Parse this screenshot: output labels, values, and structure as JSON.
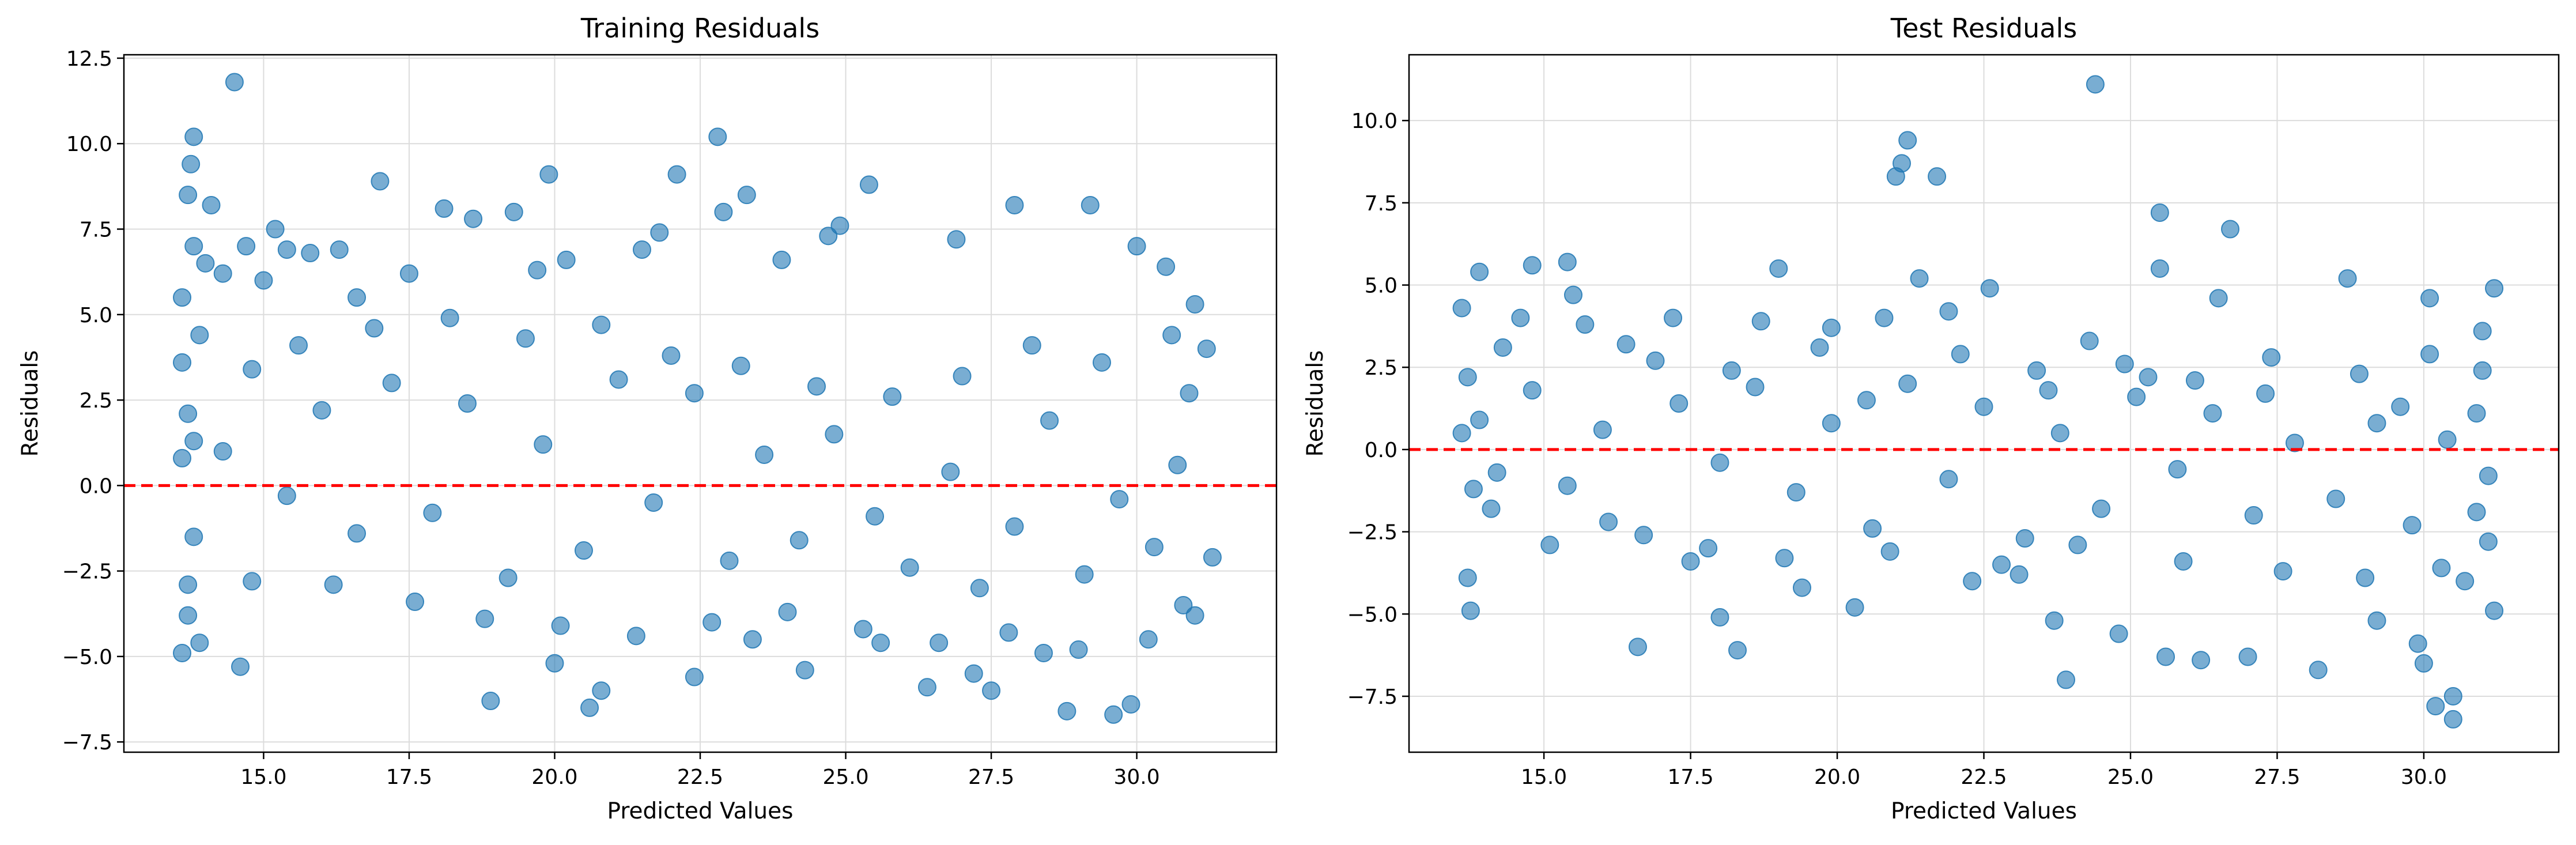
{
  "chart_data": [
    {
      "type": "scatter",
      "title": "Training Residuals",
      "xlabel": "Predicted Values",
      "ylabel": "Residuals",
      "xlim": [
        12.6,
        32.4
      ],
      "ylim": [
        -7.8,
        12.6
      ],
      "xticks": [
        "15.0",
        "17.5",
        "20.0",
        "22.5",
        "25.0",
        "27.5",
        "30.0"
      ],
      "yticks": [
        "12.5",
        "10.0",
        "7.5",
        "5.0",
        "2.5",
        "0.0",
        "−2.5",
        "−5.0",
        "−7.5"
      ],
      "reference_line": {
        "y": 0,
        "style": "dashed",
        "color": "#ff0000"
      },
      "grid": true,
      "point_color": "#1f77b4",
      "point_alpha": 0.6,
      "series": [
        {
          "values": [
            [
              13.7,
              2.1
            ],
            [
              13.6,
              0.8
            ],
            [
              13.8,
              -1.5
            ],
            [
              13.6,
              3.6
            ],
            [
              13.9,
              4.4
            ],
            [
              13.7,
              -2.9
            ],
            [
              13.6,
              5.5
            ],
            [
              13.8,
              1.3
            ],
            [
              13.7,
              -3.8
            ],
            [
              13.6,
              -4.9
            ],
            [
              13.8,
              7.0
            ],
            [
              13.7,
              8.5
            ],
            [
              13.75,
              9.4
            ],
            [
              13.8,
              10.2
            ],
            [
              13.9,
              -4.6
            ],
            [
              14.0,
              6.5
            ],
            [
              14.1,
              8.2
            ],
            [
              14.3,
              6.2
            ],
            [
              14.5,
              11.8
            ],
            [
              14.6,
              -5.3
            ],
            [
              14.7,
              7.0
            ],
            [
              14.8,
              -2.8
            ],
            [
              15.0,
              6.0
            ],
            [
              15.2,
              7.5
            ],
            [
              15.4,
              6.9
            ],
            [
              15.8,
              6.8
            ],
            [
              16.3,
              6.9
            ],
            [
              16.6,
              5.5
            ],
            [
              17.0,
              8.9
            ],
            [
              17.5,
              6.2
            ],
            [
              18.1,
              8.1
            ],
            [
              18.6,
              7.8
            ],
            [
              18.9,
              -6.3
            ],
            [
              19.3,
              8.0
            ],
            [
              19.7,
              6.3
            ],
            [
              19.9,
              9.1
            ],
            [
              20.0,
              -5.2
            ],
            [
              20.2,
              6.6
            ],
            [
              20.6,
              -6.5
            ],
            [
              20.8,
              -6.0
            ],
            [
              21.5,
              6.9
            ],
            [
              21.8,
              7.4
            ],
            [
              22.1,
              9.1
            ],
            [
              22.4,
              -5.6
            ],
            [
              22.8,
              10.2
            ],
            [
              22.9,
              8.0
            ],
            [
              23.3,
              8.5
            ],
            [
              23.4,
              -4.5
            ],
            [
              23.9,
              6.6
            ],
            [
              24.3,
              -5.4
            ],
            [
              24.7,
              7.3
            ],
            [
              24.9,
              7.6
            ],
            [
              25.4,
              8.8
            ],
            [
              25.6,
              -4.6
            ],
            [
              26.4,
              -5.9
            ],
            [
              26.9,
              7.2
            ],
            [
              27.2,
              -5.5
            ],
            [
              27.5,
              -6.0
            ],
            [
              27.9,
              8.2
            ],
            [
              28.4,
              -4.9
            ],
            [
              28.8,
              -6.6
            ],
            [
              29.2,
              8.2
            ],
            [
              29.6,
              -6.7
            ],
            [
              29.9,
              -6.4
            ],
            [
              30.0,
              7.0
            ],
            [
              30.5,
              6.4
            ],
            [
              30.8,
              -3.5
            ],
            [
              31.0,
              5.3
            ],
            [
              31.2,
              4.0
            ],
            [
              31.3,
              -2.1
            ],
            [
              31.0,
              -3.8
            ],
            [
              30.9,
              2.7
            ],
            [
              30.7,
              0.6
            ],
            [
              30.3,
              -1.8
            ],
            [
              29.7,
              -0.4
            ],
            [
              29.1,
              -2.6
            ],
            [
              28.5,
              1.9
            ],
            [
              27.9,
              -1.2
            ],
            [
              27.3,
              -3.0
            ],
            [
              26.8,
              0.4
            ],
            [
              26.1,
              -2.4
            ],
            [
              25.5,
              -0.9
            ],
            [
              24.8,
              1.5
            ],
            [
              24.2,
              -1.6
            ],
            [
              23.6,
              0.9
            ],
            [
              23.0,
              -2.2
            ],
            [
              22.4,
              2.7
            ],
            [
              21.7,
              -0.5
            ],
            [
              21.1,
              3.1
            ],
            [
              20.5,
              -1.9
            ],
            [
              19.8,
              1.2
            ],
            [
              19.2,
              -2.7
            ],
            [
              18.5,
              2.4
            ],
            [
              17.9,
              -0.8
            ],
            [
              17.2,
              3.0
            ],
            [
              16.6,
              -1.4
            ],
            [
              16.0,
              2.2
            ],
            [
              15.4,
              -0.3
            ],
            [
              14.8,
              3.4
            ],
            [
              14.3,
              1.0
            ],
            [
              15.6,
              4.1
            ],
            [
              16.9,
              4.6
            ],
            [
              18.2,
              4.9
            ],
            [
              19.5,
              4.3
            ],
            [
              20.8,
              4.7
            ],
            [
              22.0,
              3.8
            ],
            [
              23.2,
              3.5
            ],
            [
              24.5,
              2.9
            ],
            [
              25.8,
              2.6
            ],
            [
              27.0,
              3.2
            ],
            [
              28.2,
              4.1
            ],
            [
              29.4,
              3.6
            ],
            [
              30.6,
              4.4
            ],
            [
              16.2,
              -2.9
            ],
            [
              17.6,
              -3.4
            ],
            [
              18.8,
              -3.9
            ],
            [
              20.1,
              -4.1
            ],
            [
              21.4,
              -4.4
            ],
            [
              22.7,
              -4.0
            ],
            [
              24.0,
              -3.7
            ],
            [
              25.3,
              -4.2
            ],
            [
              26.6,
              -4.6
            ],
            [
              27.8,
              -4.3
            ],
            [
              29.0,
              -4.8
            ],
            [
              30.2,
              -4.5
            ]
          ]
        }
      ]
    },
    {
      "type": "scatter",
      "title": "Test Residuals",
      "xlabel": "Predicted Values",
      "ylabel": "Residuals",
      "xlim": [
        12.7,
        32.3
      ],
      "ylim": [
        -9.2,
        12.0
      ],
      "xticks": [
        "15.0",
        "17.5",
        "20.0",
        "22.5",
        "25.0",
        "27.5",
        "30.0"
      ],
      "yticks": [
        "10.0",
        "7.5",
        "5.0",
        "2.5",
        "0.0",
        "−2.5",
        "−5.0",
        "−7.5"
      ],
      "reference_line": {
        "y": 0,
        "style": "dashed",
        "color": "#ff0000"
      },
      "grid": true,
      "point_color": "#1f77b4",
      "point_alpha": 0.6,
      "series": [
        {
          "values": [
            [
              13.6,
              4.3
            ],
            [
              13.7,
              2.2
            ],
            [
              13.6,
              0.5
            ],
            [
              13.8,
              -1.2
            ],
            [
              13.7,
              -3.9
            ],
            [
              13.75,
              -4.9
            ],
            [
              13.9,
              5.4
            ],
            [
              14.1,
              -1.8
            ],
            [
              14.3,
              3.1
            ],
            [
              14.6,
              4.0
            ],
            [
              14.8,
              5.6
            ],
            [
              15.1,
              -2.9
            ],
            [
              15.4,
              5.7
            ],
            [
              15.5,
              4.7
            ],
            [
              15.7,
              3.8
            ],
            [
              16.1,
              -2.2
            ],
            [
              16.4,
              3.2
            ],
            [
              16.6,
              -6.0
            ],
            [
              17.2,
              4.0
            ],
            [
              17.5,
              -3.4
            ],
            [
              18.0,
              -5.1
            ],
            [
              18.3,
              -6.1
            ],
            [
              18.7,
              3.9
            ],
            [
              19.0,
              5.5
            ],
            [
              19.4,
              -4.2
            ],
            [
              19.9,
              3.7
            ],
            [
              20.3,
              -4.8
            ],
            [
              20.8,
              4.0
            ],
            [
              21.0,
              8.3
            ],
            [
              21.1,
              8.7
            ],
            [
              21.2,
              9.4
            ],
            [
              21.4,
              5.2
            ],
            [
              21.7,
              8.3
            ],
            [
              21.9,
              4.2
            ],
            [
              22.3,
              -4.0
            ],
            [
              22.6,
              4.9
            ],
            [
              23.1,
              -3.8
            ],
            [
              23.4,
              2.4
            ],
            [
              23.7,
              -5.2
            ],
            [
              23.9,
              -7.0
            ],
            [
              24.3,
              3.3
            ],
            [
              24.4,
              11.1
            ],
            [
              24.8,
              -5.6
            ],
            [
              25.3,
              2.2
            ],
            [
              25.5,
              7.2
            ],
            [
              25.5,
              5.5
            ],
            [
              25.6,
              -6.3
            ],
            [
              26.2,
              -6.4
            ],
            [
              26.5,
              4.6
            ],
            [
              26.7,
              6.7
            ],
            [
              27.0,
              -6.3
            ],
            [
              27.4,
              2.8
            ],
            [
              28.2,
              -6.7
            ],
            [
              28.7,
              5.2
            ],
            [
              29.2,
              -5.2
            ],
            [
              29.6,
              1.3
            ],
            [
              29.9,
              -5.9
            ],
            [
              30.0,
              -6.5
            ],
            [
              30.1,
              4.6
            ],
            [
              30.2,
              -7.8
            ],
            [
              30.5,
              -8.2
            ],
            [
              30.5,
              -7.5
            ],
            [
              30.7,
              -4.0
            ],
            [
              30.9,
              1.1
            ],
            [
              31.0,
              3.6
            ],
            [
              31.1,
              -2.8
            ],
            [
              31.2,
              4.9
            ],
            [
              31.1,
              -0.8
            ],
            [
              31.0,
              2.4
            ],
            [
              31.2,
              -4.9
            ],
            [
              30.9,
              -1.9
            ],
            [
              30.4,
              0.3
            ],
            [
              29.8,
              -2.3
            ],
            [
              29.2,
              0.8
            ],
            [
              28.5,
              -1.5
            ],
            [
              27.8,
              0.2
            ],
            [
              27.1,
              -2.0
            ],
            [
              26.4,
              1.1
            ],
            [
              25.8,
              -0.6
            ],
            [
              25.1,
              1.6
            ],
            [
              24.5,
              -1.8
            ],
            [
              23.8,
              0.5
            ],
            [
              23.2,
              -2.7
            ],
            [
              22.5,
              1.3
            ],
            [
              21.9,
              -0.9
            ],
            [
              21.2,
              2.0
            ],
            [
              20.6,
              -2.4
            ],
            [
              19.9,
              0.8
            ],
            [
              19.3,
              -1.3
            ],
            [
              18.6,
              1.9
            ],
            [
              18.0,
              -0.4
            ],
            [
              17.3,
              1.4
            ],
            [
              16.7,
              -2.6
            ],
            [
              16.0,
              0.6
            ],
            [
              15.4,
              -1.1
            ],
            [
              14.8,
              1.8
            ],
            [
              14.2,
              -0.7
            ],
            [
              13.9,
              0.9
            ],
            [
              16.9,
              2.7
            ],
            [
              18.2,
              2.4
            ],
            [
              19.7,
              3.1
            ],
            [
              20.5,
              1.5
            ],
            [
              22.1,
              2.9
            ],
            [
              23.6,
              1.8
            ],
            [
              24.9,
              2.6
            ],
            [
              26.1,
              2.1
            ],
            [
              27.3,
              1.7
            ],
            [
              28.9,
              2.3
            ],
            [
              30.1,
              2.9
            ],
            [
              17.8,
              -3.0
            ],
            [
              19.1,
              -3.3
            ],
            [
              20.9,
              -3.1
            ],
            [
              22.8,
              -3.5
            ],
            [
              24.1,
              -2.9
            ],
            [
              25.9,
              -3.4
            ],
            [
              27.6,
              -3.7
            ],
            [
              29.0,
              -3.9
            ],
            [
              30.3,
              -3.6
            ]
          ]
        }
      ]
    }
  ]
}
